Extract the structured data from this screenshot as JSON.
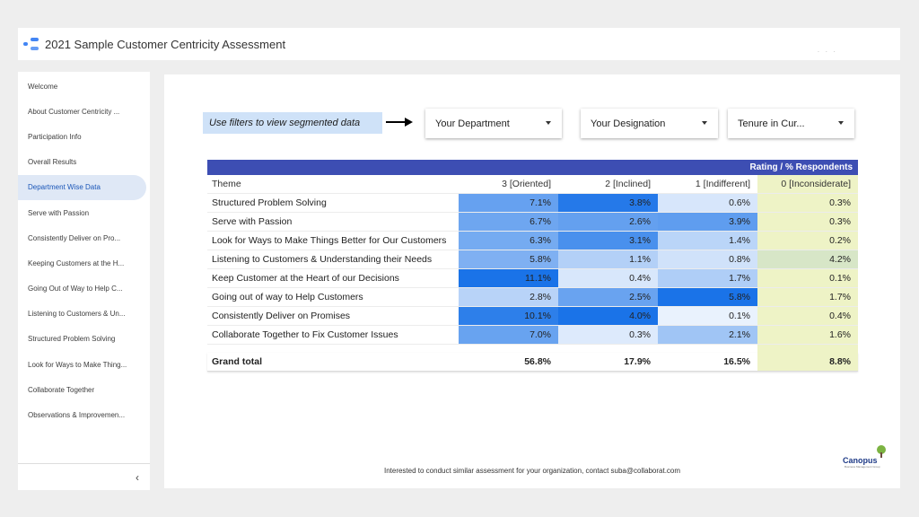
{
  "app": {
    "title": "2021 Sample Customer Centricity Assessment"
  },
  "sidebar": {
    "items": [
      {
        "label": "Welcome"
      },
      {
        "label": "About Customer Centricity ..."
      },
      {
        "label": "Participation Info"
      },
      {
        "label": "Overall Results"
      },
      {
        "label": "Department Wise Data",
        "active": true
      },
      {
        "label": "Serve with Passion"
      },
      {
        "label": "Consistently Deliver on Pro..."
      },
      {
        "label": "Keeping Customers at the H..."
      },
      {
        "label": "Going Out of Way to Help C..."
      },
      {
        "label": "Listening to Customers & Un..."
      },
      {
        "label": "Structured Problem Solving"
      },
      {
        "label": "Look for Ways to Make Thing..."
      },
      {
        "label": "Collaborate Together"
      },
      {
        "label": "Observations & Improvemen..."
      }
    ],
    "collapse_icon": "chevron-left-icon",
    "collapse_glyph": "‹"
  },
  "filters": {
    "note": "Use filters to view segmented data",
    "items": [
      {
        "label": "Your Department"
      },
      {
        "label": "Your Designation"
      },
      {
        "label": "Tenure in Cur..."
      }
    ]
  },
  "table": {
    "header_title": "Rating / % Respondents",
    "columns": [
      "Theme",
      "3 [Oriented]",
      "2 [Inclined]",
      "1 [Indifferent]",
      "0 [Inconsiderate]"
    ],
    "rows": [
      {
        "theme": "Structured Problem Solving",
        "values": [
          "7.1%",
          "3.8%",
          "0.6%",
          "0.3%"
        ]
      },
      {
        "theme": "Serve with Passion",
        "values": [
          "6.7%",
          "2.6%",
          "3.9%",
          "0.3%"
        ]
      },
      {
        "theme": "Look for Ways to Make Things Better for Our Customers",
        "values": [
          "6.3%",
          "3.1%",
          "1.4%",
          "0.2%"
        ]
      },
      {
        "theme": "Listening to Customers & Understanding their Needs",
        "values": [
          "5.8%",
          "1.1%",
          "0.8%",
          "4.2%"
        ]
      },
      {
        "theme": "Keep Customer at the Heart of our Decisions",
        "values": [
          "11.1%",
          "0.4%",
          "1.7%",
          "0.1%"
        ]
      },
      {
        "theme": "Going out of way to Help Customers",
        "values": [
          "2.8%",
          "2.5%",
          "5.8%",
          "1.7%"
        ]
      },
      {
        "theme": "Consistently Deliver on Promises",
        "values": [
          "10.1%",
          "4.0%",
          "0.1%",
          "0.4%"
        ]
      },
      {
        "theme": "Collaborate Together to Fix Customer Issues",
        "values": [
          "7.0%",
          "0.3%",
          "2.1%",
          "1.6%"
        ]
      }
    ],
    "total": {
      "label": "Grand total",
      "values": [
        "56.8%",
        "17.9%",
        "16.5%",
        "8.8%"
      ]
    },
    "colors": {
      "header_bg": "#3d4eb3",
      "heat_low": "#ffffff",
      "heat_high": "#1a73e8",
      "last_col_bg": "#eef3c6",
      "last_col_bg_high": "#d7e6c7"
    }
  },
  "footer": {
    "text": "Interested to conduct similar assessment for your organization, contact suba@collaborat.com"
  },
  "brand": {
    "name": "Canopus",
    "tagline": "Business Management Group"
  }
}
